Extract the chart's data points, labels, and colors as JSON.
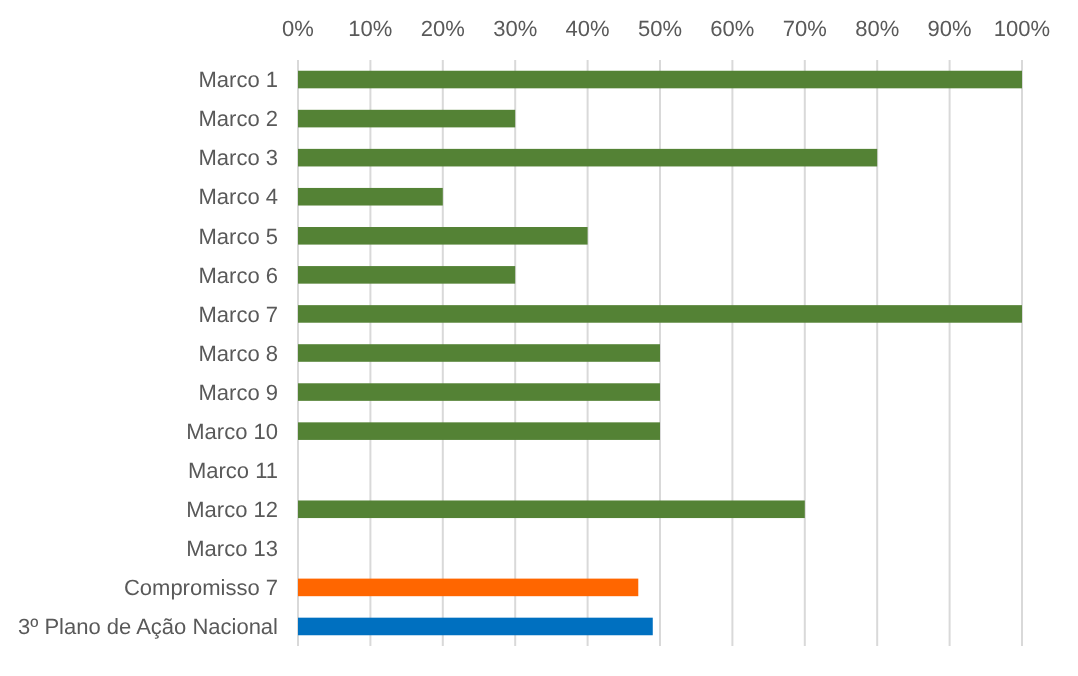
{
  "chart_data": {
    "type": "bar",
    "orientation": "horizontal",
    "categories": [
      "Marco 1",
      "Marco 2",
      "Marco 3",
      "Marco 4",
      "Marco 5",
      "Marco 6",
      "Marco 7",
      "Marco 8",
      "Marco 9",
      "Marco 10",
      "Marco 11",
      "Marco 12",
      "Marco 13",
      "Compromisso 7",
      "3º Plano de Ação Nacional"
    ],
    "values": [
      100,
      30,
      80,
      20,
      40,
      30,
      100,
      50,
      50,
      50,
      0,
      70,
      0,
      47,
      49
    ],
    "colors": [
      "#548235",
      "#548235",
      "#548235",
      "#548235",
      "#548235",
      "#548235",
      "#548235",
      "#548235",
      "#548235",
      "#548235",
      "#548235",
      "#548235",
      "#548235",
      "#ff6600",
      "#0070c0"
    ],
    "xlim": [
      0,
      100
    ],
    "xticks": [
      {
        "value": 0,
        "label": "0%"
      },
      {
        "value": 10,
        "label": "10%"
      },
      {
        "value": 20,
        "label": "20%"
      },
      {
        "value": 30,
        "label": "30%"
      },
      {
        "value": 40,
        "label": "40%"
      },
      {
        "value": 50,
        "label": "50%"
      },
      {
        "value": 60,
        "label": "60%"
      },
      {
        "value": 70,
        "label": "70%"
      },
      {
        "value": 80,
        "label": "80%"
      },
      {
        "value": 90,
        "label": "90%"
      },
      {
        "value": 100,
        "label": "100%"
      }
    ],
    "grid": "x"
  }
}
